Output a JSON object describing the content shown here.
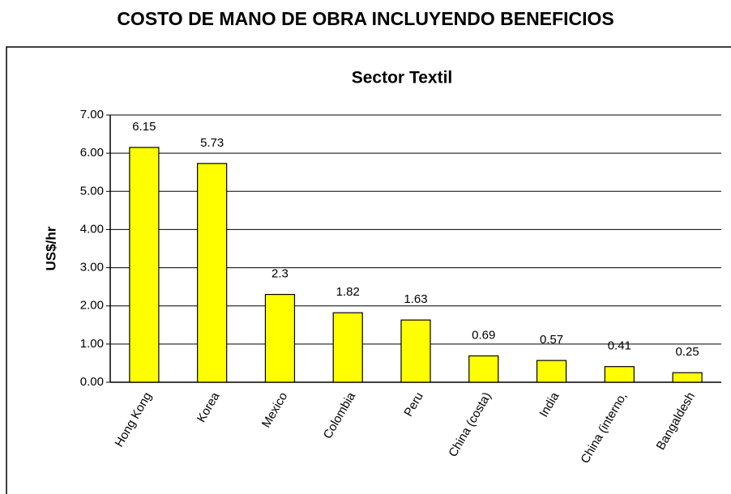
{
  "page_title": "COSTO DE MANO DE OBRA INCLUYENDO BENEFICIOS",
  "chart_data": {
    "type": "bar",
    "title": "Sector Textil",
    "y_label": "US$/hr",
    "categories": [
      "Hong Kong",
      "Korea",
      "Mexico",
      "Colombia",
      "Peru",
      "China (costa)",
      "India",
      "China (interno,",
      "Bangaldesh"
    ],
    "values": [
      6.15,
      5.73,
      2.3,
      1.82,
      1.63,
      0.69,
      0.57,
      0.41,
      0.25
    ],
    "color": "#ffff00",
    "ylim": [
      0,
      7
    ],
    "yticks": [
      {
        "value": 0,
        "label": "0.00"
      },
      {
        "value": 1,
        "label": "1.00"
      },
      {
        "value": 2,
        "label": "2.00"
      },
      {
        "value": 3,
        "label": "3.00"
      },
      {
        "value": 4,
        "label": "4.00"
      },
      {
        "value": 5,
        "label": "5.00"
      },
      {
        "value": 6,
        "label": "6.00"
      },
      {
        "value": 7,
        "label": "7.00"
      }
    ],
    "grid": true
  }
}
